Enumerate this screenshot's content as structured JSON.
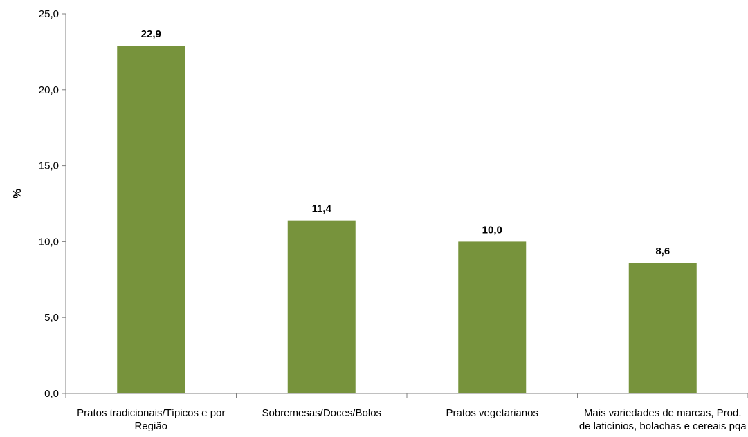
{
  "chart_data": {
    "type": "bar",
    "title": "",
    "xlabel": "",
    "ylabel": "%",
    "ylim": [
      0,
      25
    ],
    "yticks": [
      0,
      5,
      10,
      15,
      20,
      25
    ],
    "ytick_labels": [
      "0,0",
      "5,0",
      "10,0",
      "15,0",
      "20,0",
      "25,0"
    ],
    "categories": [
      [
        "Pratos tradicionais/Típicos e por",
        "Região"
      ],
      [
        "Sobremesas/Doces/Bolos"
      ],
      [
        "Pratos vegetarianos"
      ],
      [
        "Mais variedades de marcas, Prod.",
        "de laticínios, bolachas e cereais pqa"
      ]
    ],
    "values": [
      22.9,
      11.4,
      10.0,
      8.6
    ],
    "value_labels": [
      "22,9",
      "11,4",
      "10,0",
      "8,6"
    ],
    "bar_color": "#77933c",
    "grid": false,
    "legend": "none"
  }
}
